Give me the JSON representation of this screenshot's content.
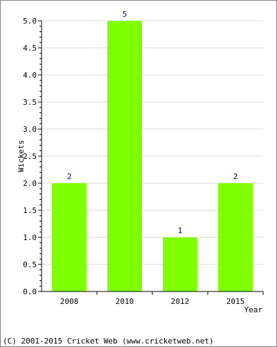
{
  "chart_data": {
    "type": "bar",
    "categories": [
      "2008",
      "2010",
      "2012",
      "2015"
    ],
    "values": [
      2,
      5,
      1,
      2
    ],
    "data_labels": [
      "2",
      "5",
      "1",
      "2"
    ],
    "title": "",
    "xlabel": "Year",
    "ylabel": "Wickets",
    "ylim": [
      0,
      5
    ],
    "yticks": [
      "0.0",
      "0.5",
      "1.0",
      "1.5",
      "2.0",
      "2.5",
      "3.0",
      "3.5",
      "4.0",
      "4.5",
      "5.0"
    ],
    "grid": true,
    "legend": "none",
    "colors": {
      "bar": "#80ff00",
      "data_label": "#000080",
      "grid": "#d8d8d8",
      "axis": "#000000",
      "text": "#000000",
      "border": "#808080"
    }
  },
  "footer": {
    "copyright": "(C) 2001-2015 Cricket Web (www.cricketweb.net)"
  }
}
